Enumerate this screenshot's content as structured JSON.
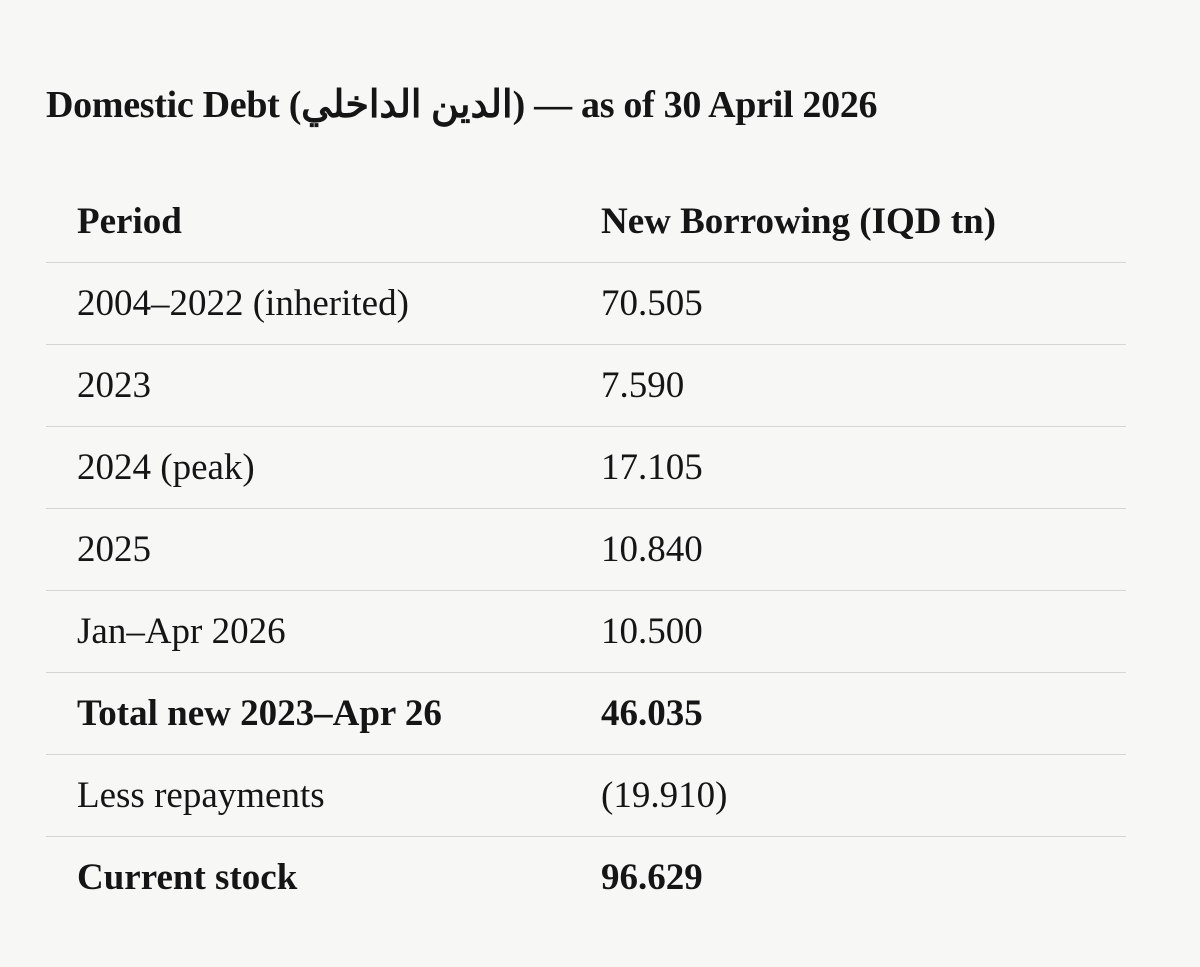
{
  "title": "Domestic Debt (الدين الداخلي) — as of 30 April 2026",
  "table": {
    "headers": [
      "Period",
      "New Borrowing (IQD tn)"
    ],
    "rows": [
      [
        "2004–2022 (inherited)",
        "70.505"
      ],
      [
        "2023",
        "7.590"
      ],
      [
        "2024 (peak)",
        "17.105"
      ],
      [
        "2025",
        "10.840"
      ],
      [
        "Jan–Apr 2026",
        "10.500"
      ],
      [
        "Total new 2023–Apr 26",
        "46.035"
      ],
      [
        "Less repayments",
        "(19.910)"
      ],
      [
        "Current stock",
        "96.629"
      ]
    ]
  }
}
